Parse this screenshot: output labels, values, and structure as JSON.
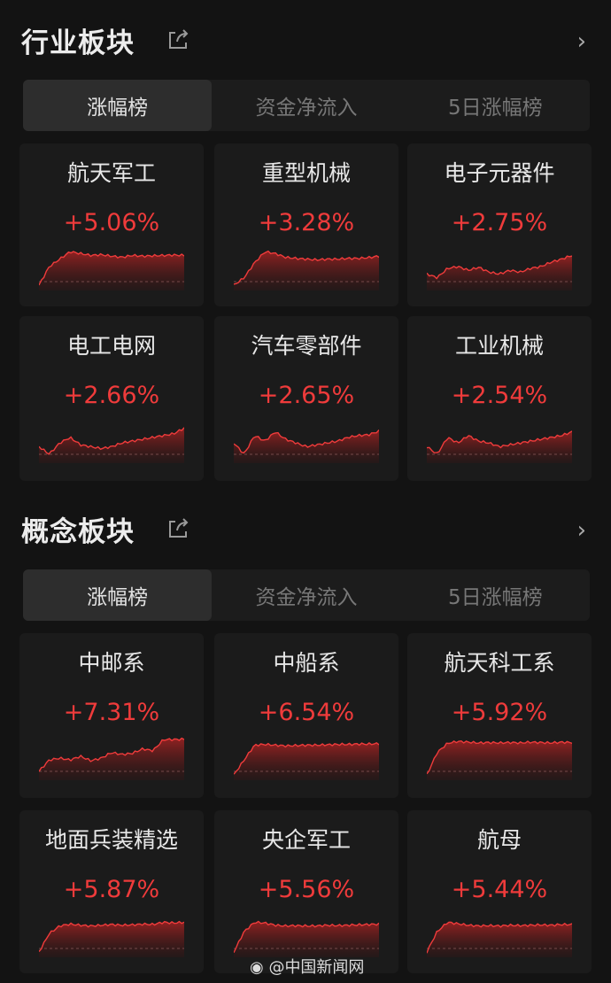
{
  "colors": {
    "up": "#ef3b3b",
    "background": "#131313",
    "card": "#1b1b1b"
  },
  "sections": [
    {
      "title": "行业板块",
      "share_icon": "share-icon",
      "more_icon": "chevron-right-icon",
      "tabs": [
        {
          "label": "涨幅榜",
          "active": true
        },
        {
          "label": "资金净流入",
          "active": false
        },
        {
          "label": "5日涨幅榜",
          "active": false
        }
      ],
      "cards": [
        {
          "name": "航天军工",
          "change": "+5.06%",
          "trend": [
            0,
            50,
            70,
            90,
            85,
            80,
            82,
            78,
            75,
            80,
            78,
            79,
            80,
            81,
            80
          ]
        },
        {
          "name": "重型机械",
          "change": "+3.28%",
          "trend": [
            0,
            20,
            60,
            90,
            85,
            75,
            72,
            70,
            68,
            70,
            70,
            72,
            72,
            74,
            78
          ]
        },
        {
          "name": "电子元器件",
          "change": "+2.75%",
          "trend": [
            30,
            20,
            45,
            50,
            40,
            48,
            35,
            30,
            40,
            35,
            45,
            50,
            62,
            70,
            80
          ]
        },
        {
          "name": "电工电网",
          "change": "+2.66%",
          "trend": [
            30,
            10,
            40,
            55,
            35,
            30,
            25,
            30,
            40,
            45,
            50,
            55,
            60,
            65,
            80
          ]
        },
        {
          "name": "汽车零部件",
          "change": "+2.65%",
          "trend": [
            40,
            10,
            60,
            45,
            70,
            50,
            40,
            30,
            35,
            40,
            45,
            55,
            60,
            62,
            72
          ]
        },
        {
          "name": "工业机械",
          "change": "+2.54%",
          "trend": [
            30,
            10,
            55,
            40,
            60,
            45,
            40,
            30,
            35,
            40,
            45,
            50,
            55,
            60,
            70
          ]
        }
      ]
    },
    {
      "title": "概念板块",
      "share_icon": "share-icon",
      "more_icon": "chevron-right-icon",
      "tabs": [
        {
          "label": "涨幅榜",
          "active": true
        },
        {
          "label": "资金净流入",
          "active": false
        },
        {
          "label": "5日涨幅榜",
          "active": false
        }
      ],
      "cards": [
        {
          "name": "中邮系",
          "change": "+7.31%",
          "trend": [
            10,
            40,
            45,
            40,
            50,
            38,
            45,
            60,
            55,
            58,
            70,
            65,
            95,
            95,
            96
          ]
        },
        {
          "name": "中船系",
          "change": "+6.54%",
          "trend": [
            0,
            40,
            80,
            82,
            80,
            78,
            79,
            80,
            80,
            81,
            82,
            82,
            83,
            83,
            84
          ]
        },
        {
          "name": "航天科工系",
          "change": "+5.92%",
          "trend": [
            0,
            60,
            85,
            90,
            88,
            86,
            87,
            86,
            87,
            86,
            88,
            87,
            86,
            88,
            87
          ]
        },
        {
          "name": "地面兵装精选",
          "change": "+5.87%",
          "trend": [
            0,
            50,
            70,
            75,
            72,
            70,
            72,
            74,
            72,
            73,
            75,
            74,
            80,
            78,
            80
          ]
        },
        {
          "name": "央企军工",
          "change": "+5.56%",
          "trend": [
            0,
            55,
            80,
            78,
            72,
            70,
            71,
            70,
            70,
            72,
            71,
            72,
            73,
            74,
            75
          ]
        },
        {
          "name": "航母",
          "change": "+5.44%",
          "trend": [
            0,
            55,
            80,
            76,
            72,
            70,
            71,
            70,
            72,
            71,
            72,
            73,
            72,
            74,
            74
          ]
        }
      ]
    }
  ],
  "watermark": "@中国新闻网"
}
